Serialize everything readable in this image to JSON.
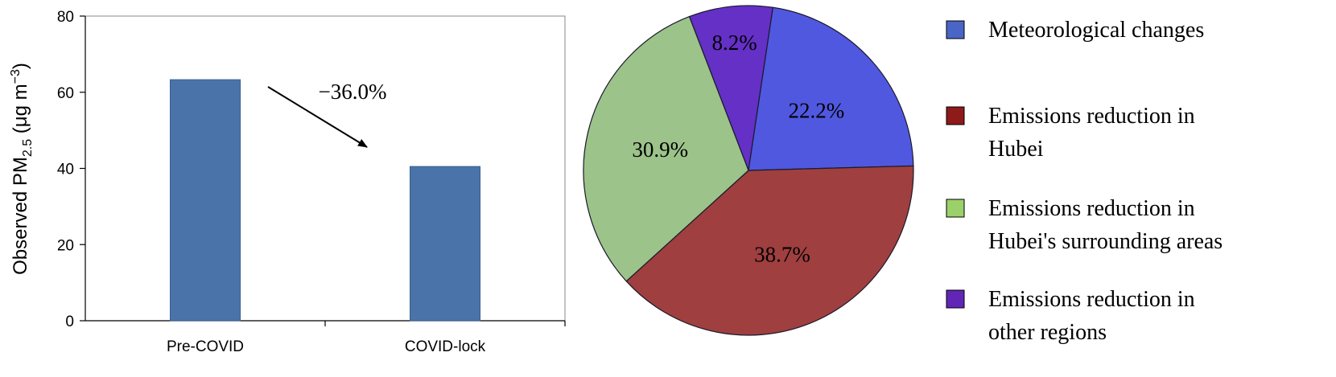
{
  "chart_data": [
    {
      "type": "bar",
      "ylabel": {
        "prefix": "Observed PM",
        "subscript": "2.5",
        "unit_open": " (μg m",
        "superscript": "−3",
        "unit_close": ")"
      },
      "ylim": [
        0,
        80
      ],
      "yticks": [
        0,
        20,
        40,
        60,
        80
      ],
      "categories": [
        "Pre-COVID",
        "COVID-lock"
      ],
      "values": [
        63.3,
        40.5
      ],
      "color": "#4a73aa",
      "annotation": "−36.0%",
      "grid": false
    },
    {
      "type": "pie",
      "slices": [
        {
          "name": "Meteorological changes",
          "value": 22.2,
          "label": "22.2%",
          "color": "#5058e0"
        },
        {
          "name": "Emissions reduction in Hubei",
          "value": 38.7,
          "label": "38.7%",
          "color": "#9f3f3f"
        },
        {
          "name": "Emissions reduction in Hubei's surrounding areas",
          "value": 30.9,
          "label": "30.9%",
          "color": "#9cc38a"
        },
        {
          "name": "Emissions reduction in other regions",
          "value": 8.2,
          "label": "8.2%",
          "color": "#6430c6"
        }
      ],
      "legend": {
        "placement": "right",
        "items": [
          {
            "lines": [
              "Meteorological changes"
            ],
            "color": "#4a65c6"
          },
          {
            "lines": [
              "Emissions reduction in",
              "Hubei"
            ],
            "color": "#8e1a1a"
          },
          {
            "lines": [
              "Emissions reduction in",
              "Hubei's surrounding areas"
            ],
            "color": "#9cd06a"
          },
          {
            "lines": [
              "Emissions reduction in",
              "other regions"
            ],
            "color": "#6226b6"
          }
        ]
      }
    }
  ]
}
